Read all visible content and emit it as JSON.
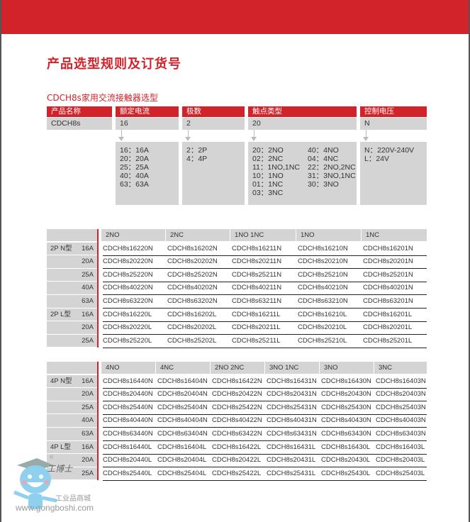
{
  "title": "产品选型规则及订货号",
  "subtitle": "CDCH8s家用交流接触器选型",
  "selection": {
    "headers": [
      "产品名称",
      "额定电流",
      "极数",
      "触点类型",
      "控制电压"
    ],
    "values": [
      "CDCH8s",
      "16",
      "2",
      "20",
      "N"
    ],
    "options": {
      "current": [
        "16：16A",
        "20：20A",
        "25：25A",
        "40：40A",
        "63：63A"
      ],
      "poles": [
        "2：2P",
        "4：4P"
      ],
      "contacts_left": [
        "20：2NO",
        "02：2NC",
        "11：1NO,1NC",
        "10：1NO",
        "01：1NC",
        "03：3NC"
      ],
      "contacts_right": [
        "40：4NO",
        "04：4NC",
        "22：2NO,2NC",
        "31：3NO,1NC",
        "30：3NO"
      ],
      "voltage": [
        "N：220V-240V",
        "L：24V"
      ]
    }
  },
  "table2p": {
    "columns": [
      "2NO",
      "2NC",
      "1NO 1NC",
      "1NO",
      "1NC"
    ],
    "rows": [
      {
        "group": "2P  N型",
        "amp": "16A",
        "codes": [
          "CDCH8s16220N",
          "CDCH8s16202N",
          "CDCH8s16211N",
          "CDCH8s16210N",
          "CDCH8s16201N"
        ]
      },
      {
        "group": "",
        "amp": "20A",
        "codes": [
          "CDCH8s20220N",
          "CDCH8s20202N",
          "CDCH8s20211N",
          "CDCH8s20210N",
          "CDCH8s20201N"
        ]
      },
      {
        "group": "",
        "amp": "25A",
        "codes": [
          "CDCH8s25220N",
          "CDCH8s25202N",
          "CDCH8s25211N",
          "CDCH8s25210N",
          "CDCH8s25201N"
        ]
      },
      {
        "group": "",
        "amp": "40A",
        "codes": [
          "CDCH8s40220N",
          "CDCH8s40202N",
          "CDCH8s40211N",
          "CDCH8s40210N",
          "CDCH8s40201N"
        ]
      },
      {
        "group": "",
        "amp": "63A",
        "codes": [
          "CDCH8s63220N",
          "CDCH8s63202N",
          "CDCH8s63211N",
          "CDCH8s63210N",
          "CDCH8s63201N"
        ]
      },
      {
        "group": "2P  L型",
        "amp": "16A",
        "codes": [
          "CDCH8s16220L",
          "CDCH8s16202L",
          "CDCH8s16211L",
          "CDCH8s16210L",
          "CDCH8s16201L"
        ]
      },
      {
        "group": "",
        "amp": "20A",
        "codes": [
          "CDCH8s20220L",
          "CDCH8s20202L",
          "CDCH8s20211L",
          "CDCH8s20210L",
          "CDCH8s20201L"
        ]
      },
      {
        "group": "",
        "amp": "25A",
        "codes": [
          "CDCH8s25220L",
          "CDCH8s25202L",
          "CDCH8s25211L",
          "CDCH8s25210L",
          "CDCH8s25201L"
        ]
      }
    ]
  },
  "table4p": {
    "columns": [
      "4NO",
      "4NC",
      "2NO 2NC",
      "3NO 1NC",
      "3NO",
      "3NC"
    ],
    "rows": [
      {
        "group": "4P  N型",
        "amp": "16A",
        "codes": [
          "CDCH8s16440N",
          "CDCH8s16404N",
          "CDCH8s16422N",
          "CDCH8s16431N",
          "CDCH8s16430N",
          "CDCH8s16403N"
        ]
      },
      {
        "group": "",
        "amp": "20A",
        "codes": [
          "CDCH8s20440N",
          "CDCH8s20404N",
          "CDCH8s20422N",
          "CDCH8s20431N",
          "CDCH8s20430N",
          "CDCH8s20403N"
        ]
      },
      {
        "group": "",
        "amp": "25A",
        "codes": [
          "CDCH8s25440N",
          "CDCH8s25404N",
          "CDCH8s25422N",
          "CDCH8s25431N",
          "CDCH8s25430N",
          "CDCH8s25403N"
        ]
      },
      {
        "group": "",
        "amp": "40A",
        "codes": [
          "CDCH8s40440N",
          "CDCH8s40404N",
          "CDCH8s40422N",
          "CDCH8s40431N",
          "CDCH8s40430N",
          "CDCH8s40403N"
        ]
      },
      {
        "group": "",
        "amp": "63A",
        "codes": [
          "CDCH8s63440N",
          "CDCH8s63404N",
          "CDCH8s63422N",
          "CDCH8s63431N",
          "CDCH8s63430N",
          "CDCH8s63403N"
        ]
      },
      {
        "group": "4P  L型",
        "amp": "16A",
        "codes": [
          "CDCH8s16440L",
          "CDCH8s16404L",
          "CDCH8s16422L",
          "CDCH8s16431L",
          "CDCH8s16430L",
          "CDCH8s16403L"
        ]
      },
      {
        "group": "",
        "amp": "20A",
        "codes": [
          "CDCH8s20440L",
          "CDCH8s20404L",
          "CDCH8s20422L",
          "CDCH8s20431L",
          "CDCH8s20430L",
          "CDCH8s20403L"
        ]
      },
      {
        "group": "",
        "amp": "25A",
        "codes": [
          "CDCH8s25440L",
          "CDCH8s25404L",
          "CDCH8s25422L",
          "CDCH8s25431L",
          "CDCH8s25430L",
          "CDCH8s25403L"
        ]
      }
    ]
  },
  "watermark": {
    "brand": "工博士",
    "tagline": "工业品商城",
    "url": "www.gongboshi.com",
    "registered": "®"
  },
  "colors": {
    "accent": "#d2232a",
    "cell": "#d4d4d5"
  }
}
